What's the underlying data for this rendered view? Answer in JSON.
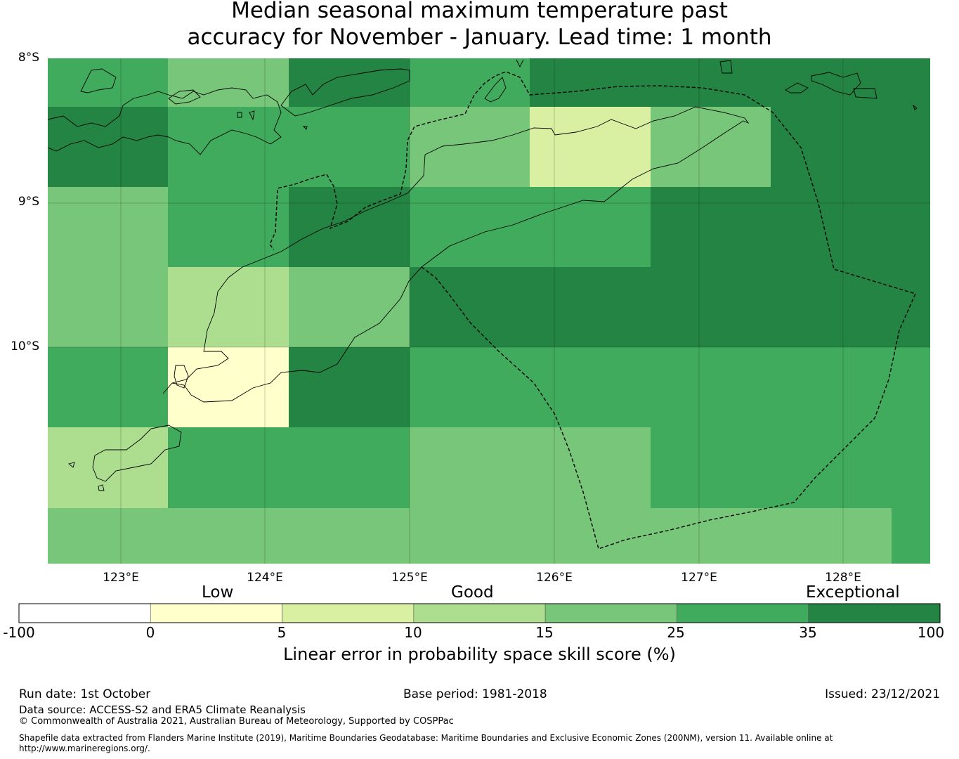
{
  "title": {
    "line1": "Median seasonal maximum temperature past",
    "line2": "accuracy for November - January. Lead time: 1 month"
  },
  "map": {
    "lat_labels": [
      "8°S",
      "9°S",
      "10°S"
    ],
    "lon_labels": [
      "123°E",
      "124°E",
      "125°E",
      "126°E",
      "127°E",
      "128°E"
    ],
    "category_colors": {
      "below_0": "#ffffff",
      "0_5": "#ffffcc",
      "5_10": "#d9f0a3",
      "10_15": "#addd8e",
      "15_25": "#78c679",
      "25_35": "#41ab5d",
      "35_100": "#238443"
    }
  },
  "colorbar": {
    "categories": [
      "Low",
      "Good",
      "Exceptional"
    ],
    "ticks": [
      "-100",
      "0",
      "5",
      "10",
      "15",
      "25",
      "35",
      "100"
    ],
    "colors": [
      "#ffffff",
      "#ffffcc",
      "#d9f0a3",
      "#addd8e",
      "#78c679",
      "#41ab5d",
      "#238443"
    ],
    "label": "Linear error in probability space skill score (%)"
  },
  "footer": {
    "run_date": "Run date: 1st October",
    "base_period": "Base period: 1981-2018",
    "issued": "Issued: 23/12/2021",
    "data_source": "Data source: ACCESS-S2 and ERA5 Climate Reanalysis",
    "copyright": "© Commonwealth of Australia 2021, Australian Bureau of Meteorology, Supported by COSPPac",
    "shapefile_line1": "Shapefile data extracted from Flanders Marine Institute (2019), Maritime Boundaries Geodatabase: Maritime Boundaries and Exclusive Economic Zones (200NM), version 11. Available online at",
    "shapefile_line2": "http://www.marineregions.org/."
  }
}
